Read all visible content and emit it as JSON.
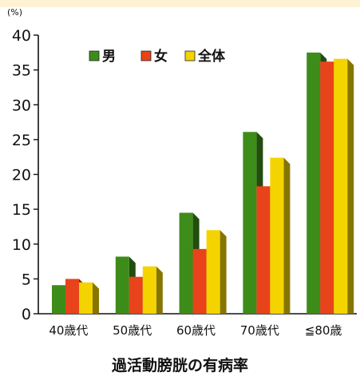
{
  "chart_data": {
    "type": "bar",
    "title": "過活動膀胱の有病率",
    "unit": "(%)",
    "categories": [
      "40歳代",
      "50歳代",
      "60歳代",
      "70歳代",
      "≦80歳"
    ],
    "series": [
      {
        "name": "男",
        "color": "#3d8c1a",
        "values": [
          4.1,
          8.2,
          14.5,
          26.1,
          37.5
        ]
      },
      {
        "name": "女",
        "color": "#e8431a",
        "values": [
          5.0,
          5.3,
          9.3,
          18.3,
          36.2
        ]
      },
      {
        "name": "全体",
        "color": "#f3d400",
        "values": [
          4.5,
          6.8,
          12.0,
          22.4,
          36.6
        ]
      }
    ],
    "ylim": [
      0,
      40
    ],
    "yticks": [
      0,
      5,
      10,
      15,
      20,
      25,
      30,
      35,
      40
    ],
    "legend_position": "top-left inside",
    "grid": false
  }
}
